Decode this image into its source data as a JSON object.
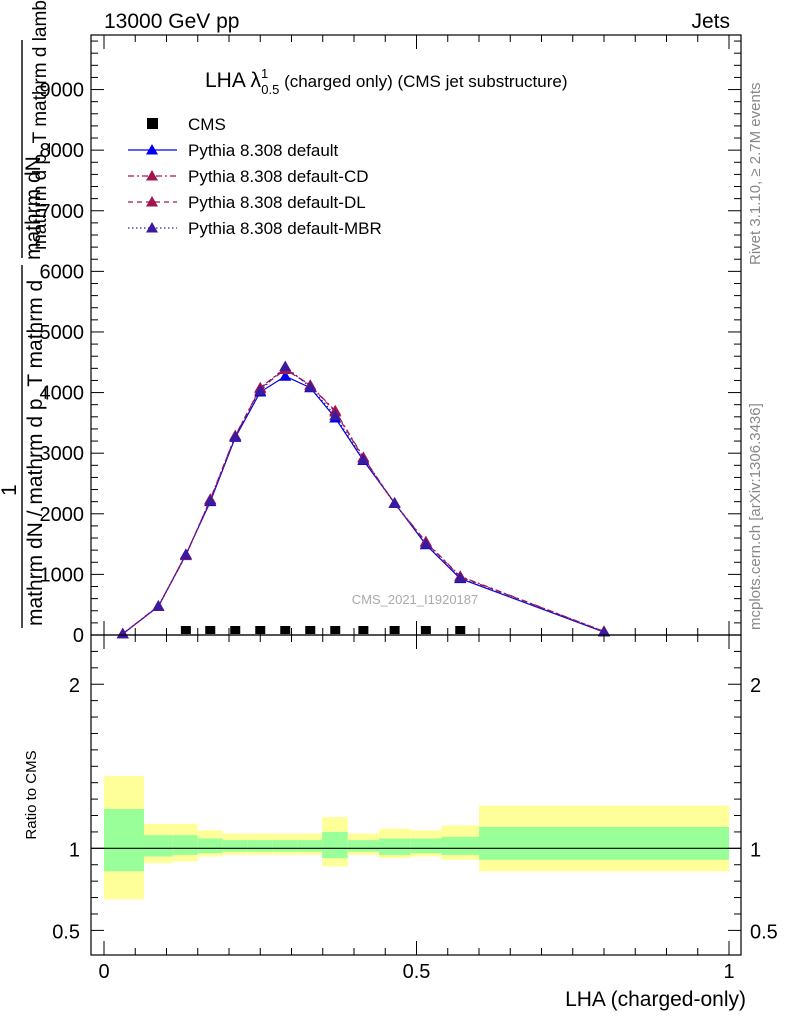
{
  "header": {
    "left": "13000 GeV pp",
    "right": "Jets"
  },
  "side_labels": {
    "rivet": "Rivet 3.1.10, ≥ 2.7M events",
    "mcplots": "mcplots.cern.ch [arXiv:1306.3436]"
  },
  "title": {
    "main": "LHA λ",
    "sup": "1",
    "sub": "0.5",
    "rest": " (charged only) (CMS jet substructure)"
  },
  "watermark": "CMS_2021_I1920187",
  "ylabel_upper_lines": [
    "mathrm dN",
    "mathrm d p_T mathrm d lambda",
    "1",
    "mathrm dN / mathrm d p_T mathrm d"
  ],
  "legend": {
    "entries": [
      {
        "label": "CMS",
        "marker": "square",
        "color": "#000000",
        "line": "none"
      },
      {
        "label": "Pythia 8.308 default",
        "marker": "triangle",
        "color": "#0000ee",
        "line": "solid"
      },
      {
        "label": "Pythia 8.308 default-CD",
        "marker": "triangle",
        "color": "#a0144f",
        "line": "dashdot"
      },
      {
        "label": "Pythia 8.308 default-DL",
        "marker": "triangle",
        "color": "#a0144f",
        "line": "dashed"
      },
      {
        "label": "Pythia 8.308 default-MBR",
        "marker": "triangle",
        "color": "#3a1aa0",
        "line": "dotted"
      }
    ]
  },
  "chart_data": {
    "type": "line",
    "xlabel": "LHA (charged-only)",
    "ratio_ylabel": "Ratio to CMS",
    "xlim": [
      0,
      1
    ],
    "ylim": [
      0,
      9900
    ],
    "ratio_ylim": [
      0.35,
      2.3
    ],
    "x_ticks": [
      "0",
      "0.5",
      "1"
    ],
    "x_tick_values": [
      0,
      0.5,
      1
    ],
    "y_ticks": [
      "0",
      "1000",
      "2000",
      "3000",
      "4000",
      "5000",
      "6000",
      "7000",
      "8000",
      "9000"
    ],
    "y_tick_values": [
      0,
      1000,
      2000,
      3000,
      4000,
      5000,
      6000,
      7000,
      8000,
      9000
    ],
    "ratio_ticks": [
      "0.5",
      "1",
      "2"
    ],
    "ratio_tick_values": [
      0.5,
      1,
      2
    ],
    "x": [
      0.03,
      0.087,
      0.131,
      0.17,
      0.21,
      0.25,
      0.29,
      0.33,
      0.37,
      0.415,
      0.465,
      0.515,
      0.57,
      0.8
    ],
    "bin_edges": [
      0.0,
      0.064,
      0.11,
      0.152,
      0.19,
      0.23,
      0.27,
      0.31,
      0.349,
      0.39,
      0.44,
      0.49,
      0.54,
      0.6,
      1.0
    ],
    "data_points": {
      "name": "CMS",
      "x": [
        0.131,
        0.17,
        0.21,
        0.25,
        0.29,
        0.33,
        0.37,
        0.415,
        0.465,
        0.515,
        0.57
      ],
      "y": [
        0,
        0,
        0,
        0,
        0,
        0,
        0,
        0,
        0,
        0,
        0
      ]
    },
    "series": [
      {
        "name": "Pythia 8.308 default",
        "color": "#0000ee",
        "dash": "",
        "values": [
          20,
          470,
          1330,
          2200,
          3260,
          4010,
          4270,
          4080,
          3580,
          2880,
          2180,
          1490,
          930,
          50
        ]
      },
      {
        "name": "Pythia 8.308 default-CD",
        "color": "#a0144f",
        "dash": "6,3,2,3",
        "values": [
          20,
          480,
          1310,
          2240,
          3290,
          4080,
          4400,
          4120,
          3700,
          2930,
          2170,
          1540,
          970,
          60
        ]
      },
      {
        "name": "Pythia 8.308 default-DL",
        "color": "#a0144f",
        "dash": "5,4",
        "values": [
          20,
          470,
          1320,
          2230,
          3280,
          4070,
          4380,
          4120,
          3680,
          2920,
          2170,
          1530,
          960,
          60
        ]
      },
      {
        "name": "Pythia 8.308 default-MBR",
        "color": "#3a1aa0",
        "dash": "1.5,2.5",
        "values": [
          20,
          475,
          1325,
          2210,
          3270,
          4030,
          4430,
          4090,
          3620,
          2890,
          2170,
          1500,
          940,
          50
        ]
      }
    ],
    "ratio_bands": {
      "edges": [
        0.0,
        0.064,
        0.11,
        0.15,
        0.19,
        0.23,
        0.27,
        0.31,
        0.349,
        0.39,
        0.44,
        0.49,
        0.54,
        0.6,
        1.0
      ],
      "outer_low": [
        0.69,
        0.91,
        0.92,
        0.95,
        0.96,
        0.96,
        0.96,
        0.96,
        0.89,
        0.96,
        0.94,
        0.95,
        0.93,
        0.86
      ],
      "outer_high": [
        1.44,
        1.15,
        1.15,
        1.11,
        1.09,
        1.09,
        1.09,
        1.09,
        1.19,
        1.09,
        1.12,
        1.11,
        1.14,
        1.26
      ],
      "inner_low": [
        0.86,
        0.95,
        0.96,
        0.97,
        0.98,
        0.98,
        0.98,
        0.98,
        0.94,
        0.98,
        0.96,
        0.97,
        0.96,
        0.93
      ],
      "inner_high": [
        1.24,
        1.08,
        1.08,
        1.06,
        1.05,
        1.05,
        1.05,
        1.05,
        1.1,
        1.05,
        1.06,
        1.06,
        1.07,
        1.13
      ],
      "outer_color": "#ffff99",
      "inner_color": "#99ff99"
    }
  }
}
